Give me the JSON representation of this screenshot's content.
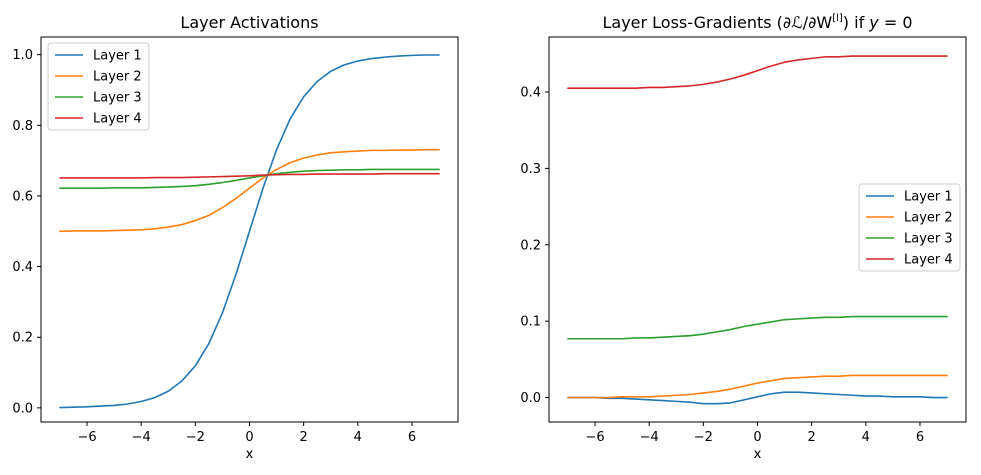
{
  "chart_data": [
    {
      "type": "line",
      "title": "Layer Activations",
      "xlabel": "x",
      "ylabel": "",
      "xlim": [
        -7.7,
        7.7
      ],
      "ylim": [
        -0.04,
        1.05
      ],
      "xticks": [
        -6,
        -4,
        -2,
        0,
        2,
        4,
        6
      ],
      "xtick_labels": [
        "−6",
        "−4",
        "−2",
        "0",
        "2",
        "4",
        "6"
      ],
      "yticks": [
        0.0,
        0.2,
        0.4,
        0.6,
        0.8,
        1.0
      ],
      "ytick_labels": [
        "0.0",
        "0.2",
        "0.4",
        "0.6",
        "0.8",
        "1.0"
      ],
      "legend_position": "top-left",
      "x": [
        -7,
        -6.5,
        -6,
        -5.5,
        -5,
        -4.5,
        -4,
        -3.5,
        -3,
        -2.5,
        -2,
        -1.5,
        -1,
        -0.5,
        0,
        0.5,
        1,
        1.5,
        2,
        2.5,
        3,
        3.5,
        4,
        4.5,
        5,
        5.5,
        6,
        6.5,
        7
      ],
      "series": [
        {
          "name": "Layer 1",
          "color": "#1f77b4",
          "values": [
            0.001,
            0.002,
            0.003,
            0.005,
            0.007,
            0.011,
            0.018,
            0.029,
            0.047,
            0.076,
            0.119,
            0.182,
            0.269,
            0.378,
            0.5,
            0.622,
            0.731,
            0.818,
            0.881,
            0.924,
            0.953,
            0.971,
            0.982,
            0.989,
            0.993,
            0.996,
            0.998,
            0.999,
            0.999
          ]
        },
        {
          "name": "Layer 2",
          "color": "#ff7f0e",
          "values": [
            0.5,
            0.501,
            0.501,
            0.501,
            0.502,
            0.503,
            0.504,
            0.507,
            0.512,
            0.519,
            0.53,
            0.545,
            0.567,
            0.593,
            0.622,
            0.651,
            0.675,
            0.694,
            0.707,
            0.716,
            0.722,
            0.725,
            0.727,
            0.729,
            0.729,
            0.73,
            0.73,
            0.731,
            0.731
          ]
        },
        {
          "name": "Layer 3",
          "color": "#2ca02c",
          "values": [
            0.622,
            0.622,
            0.622,
            0.622,
            0.623,
            0.623,
            0.623,
            0.624,
            0.625,
            0.627,
            0.629,
            0.633,
            0.638,
            0.644,
            0.651,
            0.657,
            0.663,
            0.667,
            0.67,
            0.672,
            0.673,
            0.674,
            0.674,
            0.675,
            0.675,
            0.675,
            0.675,
            0.675,
            0.675
          ]
        },
        {
          "name": "Layer 4",
          "color": "#d62728",
          "values": [
            0.651,
            0.651,
            0.651,
            0.651,
            0.651,
            0.651,
            0.651,
            0.652,
            0.652,
            0.652,
            0.653,
            0.654,
            0.655,
            0.656,
            0.657,
            0.659,
            0.66,
            0.661,
            0.661,
            0.662,
            0.662,
            0.662,
            0.662,
            0.662,
            0.663,
            0.663,
            0.663,
            0.663,
            0.663
          ]
        }
      ]
    },
    {
      "type": "line",
      "title": "Layer Loss-Gradients (∂ℒ/∂W",
      "title_sup": "[l]",
      "title_tail": ") if ",
      "title_italic": "y",
      "title_end": " = 0",
      "xlabel": "x",
      "ylabel": "",
      "xlim": [
        -7.7,
        7.7
      ],
      "ylim": [
        -0.032,
        0.472
      ],
      "xticks": [
        -6,
        -4,
        -2,
        0,
        2,
        4,
        6
      ],
      "xtick_labels": [
        "−6",
        "−4",
        "−2",
        "0",
        "2",
        "4",
        "6"
      ],
      "yticks": [
        0.0,
        0.1,
        0.2,
        0.3,
        0.4
      ],
      "ytick_labels": [
        "0.0",
        "0.1",
        "0.2",
        "0.3",
        "0.4"
      ],
      "legend_position": "center-right",
      "x": [
        -7,
        -6.5,
        -6,
        -5.5,
        -5,
        -4.5,
        -4,
        -3.5,
        -3,
        -2.5,
        -2,
        -1.5,
        -1,
        -0.5,
        0,
        0.5,
        1,
        1.5,
        2,
        2.5,
        3,
        3.5,
        4,
        4.5,
        5,
        5.5,
        6,
        6.5,
        7
      ],
      "series": [
        {
          "name": "Layer 1",
          "color": "#1f77b4",
          "values": [
            0.0,
            0.0,
            0.0,
            -0.001,
            -0.001,
            -0.002,
            -0.003,
            -0.004,
            -0.005,
            -0.006,
            -0.008,
            -0.008,
            -0.007,
            -0.003,
            0.001,
            0.005,
            0.007,
            0.007,
            0.006,
            0.005,
            0.004,
            0.003,
            0.002,
            0.002,
            0.001,
            0.001,
            0.001,
            0.0,
            0.0
          ]
        },
        {
          "name": "Layer 2",
          "color": "#ff7f0e",
          "values": [
            0.0,
            0.0,
            0.0,
            0.0,
            0.001,
            0.001,
            0.001,
            0.002,
            0.003,
            0.004,
            0.006,
            0.008,
            0.011,
            0.015,
            0.019,
            0.022,
            0.025,
            0.026,
            0.027,
            0.028,
            0.028,
            0.029,
            0.029,
            0.029,
            0.029,
            0.029,
            0.029,
            0.029,
            0.029
          ]
        },
        {
          "name": "Layer 3",
          "color": "#2ca02c",
          "values": [
            0.077,
            0.077,
            0.077,
            0.077,
            0.077,
            0.078,
            0.078,
            0.079,
            0.08,
            0.081,
            0.083,
            0.086,
            0.089,
            0.093,
            0.096,
            0.099,
            0.102,
            0.103,
            0.104,
            0.105,
            0.105,
            0.106,
            0.106,
            0.106,
            0.106,
            0.106,
            0.106,
            0.106,
            0.106
          ]
        },
        {
          "name": "Layer 4",
          "color": "#d62728",
          "values": [
            0.405,
            0.405,
            0.405,
            0.405,
            0.405,
            0.405,
            0.406,
            0.406,
            0.407,
            0.408,
            0.41,
            0.413,
            0.417,
            0.422,
            0.428,
            0.434,
            0.439,
            0.442,
            0.444,
            0.446,
            0.446,
            0.447,
            0.447,
            0.447,
            0.447,
            0.447,
            0.447,
            0.447,
            0.447
          ]
        }
      ]
    }
  ]
}
